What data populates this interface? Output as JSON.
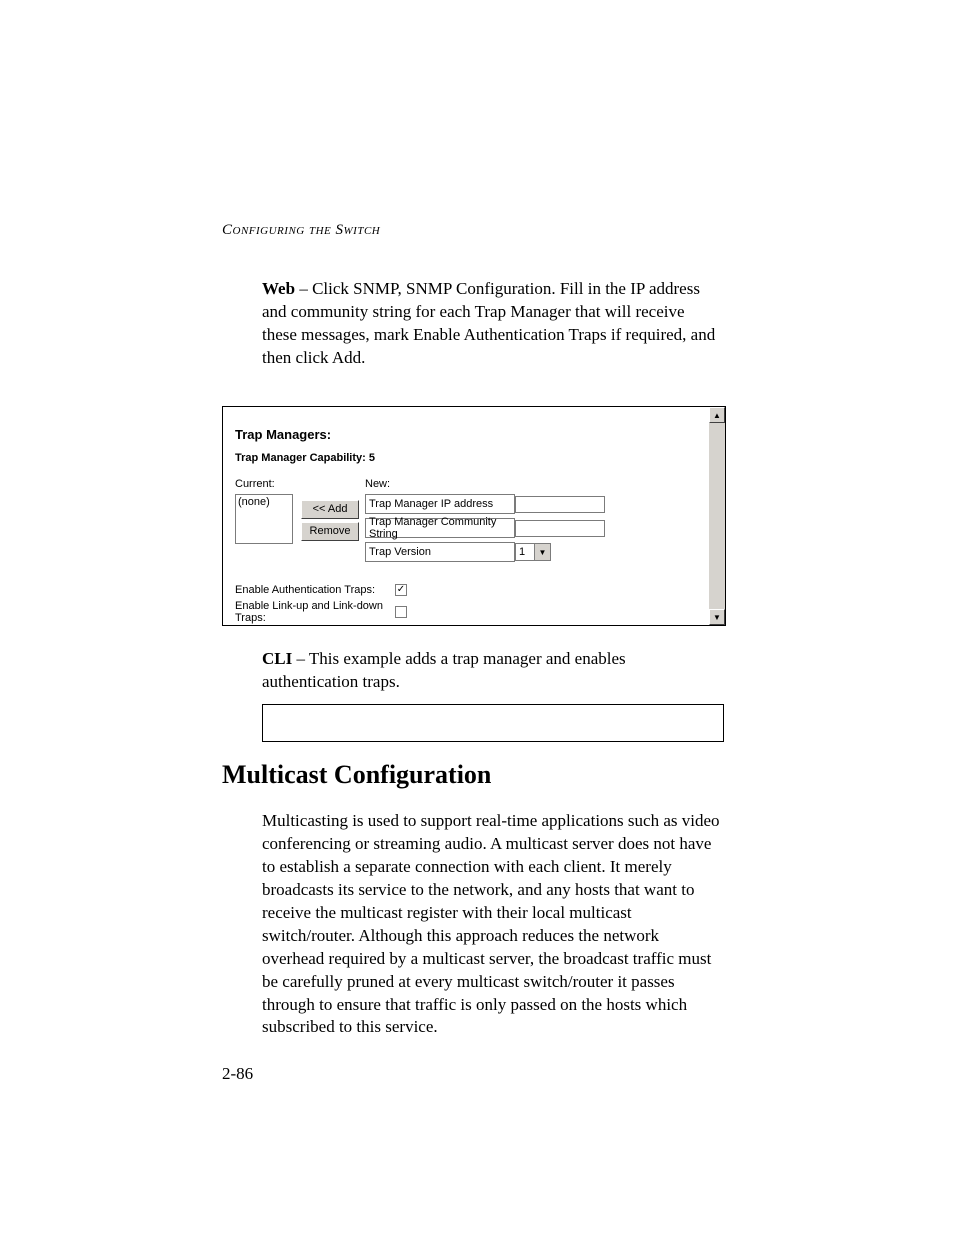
{
  "chapter_header": "Configuring the Switch",
  "web_label": "Web",
  "web_paragraph": " – Click SNMP, SNMP Configuration. Fill in the IP address and community string for each Trap Manager that will receive these messages, mark Enable Authentication Traps if required, and then click Add.",
  "panel": {
    "title": "Trap Managers:",
    "capability": "Trap Manager Capability: 5",
    "current_label": "Current:",
    "current_value": "(none)",
    "new_label": "New:",
    "add_btn": "<< Add",
    "remove_btn": "Remove",
    "ip_label": "Trap Manager IP address",
    "comm_label": "Trap Manager Community String",
    "version_label": "Trap Version",
    "version_value": "1",
    "auth_traps_label": "Enable Authentication Traps:",
    "auth_traps_checked": "✓",
    "linkud_label": "Enable Link-up and Link-down Traps:"
  },
  "cli_label": "CLI",
  "cli_paragraph": " – This example adds a trap manager and enables authentication traps.",
  "section_heading": "Multicast Configuration",
  "multicast_paragraph": "Multicasting is used to support real-time applications such as video conferencing or streaming audio. A multicast server does not have to establish a separate connection with each client. It merely broadcasts its service to the network, and any hosts that want to receive the multicast register with their local multicast switch/router. Although this approach reduces the network overhead required by a multicast server, the broadcast traffic must be carefully pruned at every multicast switch/router it passes through to ensure that traffic is only passed on the hosts which subscribed to this service.",
  "page_number": "2-86"
}
